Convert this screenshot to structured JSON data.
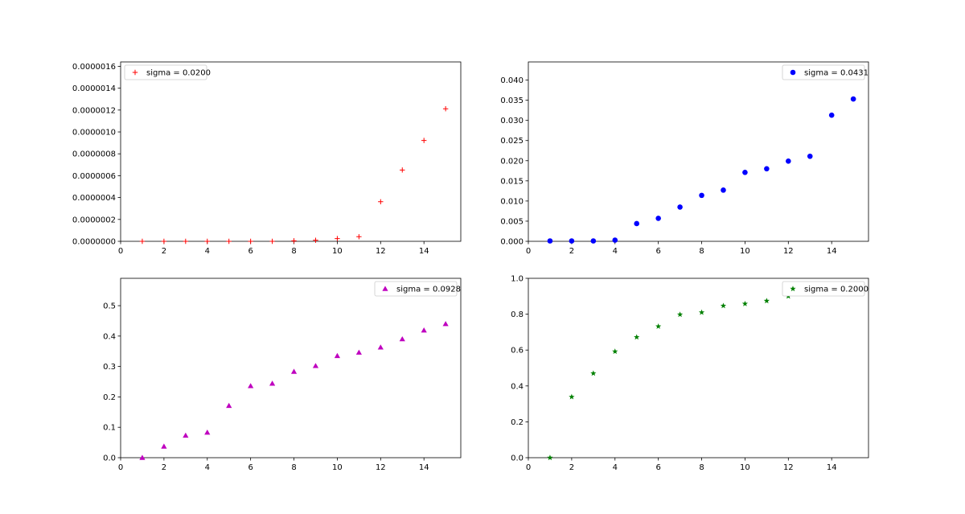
{
  "chart_data": [
    {
      "type": "scatter",
      "marker": "plus",
      "color": "#ff0000",
      "legend_location": "upper left",
      "series": [
        {
          "name": "sigma = 0.0200",
          "x": [
            1,
            2,
            3,
            4,
            5,
            6,
            7,
            8,
            9,
            10,
            11,
            12,
            13,
            14,
            15
          ],
          "y": [
            0,
            0,
            0,
            0,
            0,
            0,
            0,
            5e-09,
            1e-08,
            2.5e-08,
            4.2e-08,
            3.62e-07,
            6.52e-07,
            9.22e-07,
            1.212e-06
          ]
        }
      ],
      "xlim": [
        0,
        15.7
      ],
      "ylim": [
        0,
        1.64e-06
      ],
      "xticks": [
        "0",
        "2",
        "4",
        "6",
        "8",
        "10",
        "12",
        "14"
      ],
      "xtick_values": [
        0,
        2,
        4,
        6,
        8,
        10,
        12,
        14
      ],
      "yticks": [
        "0.0000000",
        "0.0000002",
        "0.0000004",
        "0.0000006",
        "0.0000008",
        "0.0000010",
        "0.0000012",
        "0.0000014",
        "0.0000016"
      ],
      "ytick_values": [
        0,
        2e-07,
        4e-07,
        6e-07,
        8e-07,
        1e-06,
        1.2e-06,
        1.4e-06,
        1.6e-06
      ],
      "title": "",
      "xlabel": "",
      "ylabel": "",
      "grid": false
    },
    {
      "type": "scatter",
      "marker": "circle",
      "color": "#0000ff",
      "legend_location": "upper right",
      "series": [
        {
          "name": "sigma = 0.0431",
          "x": [
            1,
            2,
            3,
            4,
            5,
            6,
            7,
            8,
            9,
            10,
            11,
            12,
            13,
            14,
            15
          ],
          "y": [
            0.0001,
            0.0001,
            0.0001,
            0.0003,
            0.0044,
            0.0057,
            0.0085,
            0.0114,
            0.0127,
            0.0171,
            0.018,
            0.0199,
            0.0211,
            0.0313,
            0.0353
          ]
        }
      ],
      "xlim": [
        0,
        15.7
      ],
      "ylim": [
        0,
        0.0445
      ],
      "xticks": [
        "0",
        "2",
        "4",
        "6",
        "8",
        "10",
        "12",
        "14"
      ],
      "xtick_values": [
        0,
        2,
        4,
        6,
        8,
        10,
        12,
        14
      ],
      "yticks": [
        "0.000",
        "0.005",
        "0.010",
        "0.015",
        "0.020",
        "0.025",
        "0.030",
        "0.035",
        "0.040"
      ],
      "ytick_values": [
        0,
        0.005,
        0.01,
        0.015,
        0.02,
        0.025,
        0.03,
        0.035,
        0.04
      ],
      "title": "",
      "xlabel": "",
      "ylabel": "",
      "grid": false
    },
    {
      "type": "scatter",
      "marker": "triangle",
      "color": "#bf00bf",
      "legend_location": "upper right",
      "series": [
        {
          "name": "sigma = 0.0928",
          "x": [
            1,
            2,
            3,
            4,
            5,
            6,
            7,
            8,
            9,
            10,
            11,
            12,
            13,
            14,
            15
          ],
          "y": [
            0.0,
            0.037,
            0.073,
            0.083,
            0.171,
            0.236,
            0.244,
            0.283,
            0.302,
            0.335,
            0.346,
            0.363,
            0.39,
            0.419,
            0.44
          ]
        }
      ],
      "xlim": [
        0,
        15.7
      ],
      "ylim": [
        0,
        0.59
      ],
      "xticks": [
        "0",
        "2",
        "4",
        "6",
        "8",
        "10",
        "12",
        "14"
      ],
      "xtick_values": [
        0,
        2,
        4,
        6,
        8,
        10,
        12,
        14
      ],
      "yticks": [
        "0.0",
        "0.1",
        "0.2",
        "0.3",
        "0.4",
        "0.5"
      ],
      "ytick_values": [
        0,
        0.1,
        0.2,
        0.3,
        0.4,
        0.5
      ],
      "title": "",
      "xlabel": "",
      "ylabel": "",
      "grid": false
    },
    {
      "type": "scatter",
      "marker": "star",
      "color": "#008000",
      "legend_location": "upper right",
      "series": [
        {
          "name": "sigma = 0.2000",
          "x": [
            1,
            2,
            3,
            4,
            5,
            6,
            7,
            8,
            9,
            10,
            11,
            12,
            13,
            14,
            15
          ],
          "y": [
            0.0,
            0.339,
            0.47,
            0.592,
            0.672,
            0.732,
            0.798,
            0.81,
            0.847,
            0.858,
            0.874,
            0.9,
            0.922,
            0.925,
            0.935
          ]
        }
      ],
      "xlim": [
        0,
        15.7
      ],
      "ylim": [
        0,
        1.0
      ],
      "xticks": [
        "0",
        "2",
        "4",
        "6",
        "8",
        "10",
        "12",
        "14"
      ],
      "xtick_values": [
        0,
        2,
        4,
        6,
        8,
        10,
        12,
        14
      ],
      "yticks": [
        "0.0",
        "0.2",
        "0.4",
        "0.6",
        "0.8",
        "1.0"
      ],
      "ytick_values": [
        0,
        0.2,
        0.4,
        0.6,
        0.8,
        1.0
      ],
      "title": "",
      "xlabel": "",
      "ylabel": "",
      "grid": false
    }
  ]
}
